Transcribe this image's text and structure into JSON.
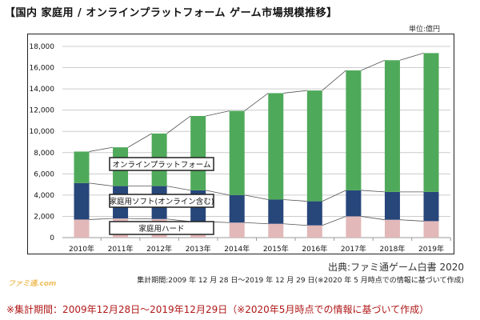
{
  "chart_data": {
    "type": "bar",
    "stacked": true,
    "title": "【国内 家庭用 / オンラインプラットフォーム ゲーム市場規模推移】",
    "unit_label": "単位:億円",
    "categories": [
      "2010年",
      "2011年",
      "2012年",
      "2013年",
      "2014年",
      "2015年",
      "2016年",
      "2017年",
      "2018年",
      "2019年"
    ],
    "series": [
      {
        "name": "家庭用ハード",
        "color": "#e2b8b8",
        "values": [
          1700,
          1800,
          1750,
          1500,
          1410,
          1300,
          1150,
          2000,
          1680,
          1550
        ]
      },
      {
        "name": "家庭用ソフト(オンライン含む)",
        "color": "#27467a",
        "values": [
          3430,
          3050,
          3100,
          2950,
          2590,
          2280,
          2270,
          2450,
          2620,
          2750
        ]
      },
      {
        "name": "オンラインプラットフォーム",
        "color": "#4fa95a",
        "values": [
          2970,
          3650,
          4950,
          7000,
          7930,
          10020,
          10430,
          11290,
          12400,
          13070
        ]
      }
    ],
    "ylim": [
      0,
      18000
    ],
    "yticks": [
      "0",
      "2,000",
      "4,000",
      "6,000",
      "8,000",
      "10,000",
      "12,000",
      "14,000",
      "16,000",
      "18,000"
    ],
    "grid": true,
    "legend": "inline boxes on left"
  },
  "source": "出典:ファミ通ゲーム白書 2020",
  "period": "集計期間:2009 年 12 月 28 日〜2019 年 12 月 29 日(※2020 年 5 月時点での情報に基づいて作成)",
  "watermark": "ファミ通.com",
  "note": "※集計期間：2009年12月28日〜2019年12月29日（※2020年5月時点での情報に基づいて作成）"
}
